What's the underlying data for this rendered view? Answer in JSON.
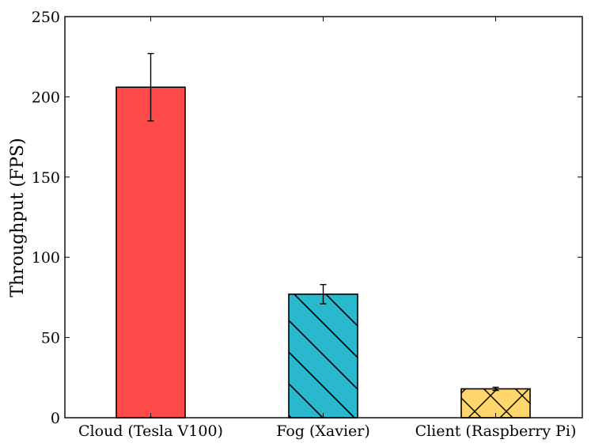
{
  "chart_data": {
    "type": "bar",
    "ylabel": "Throughput (FPS)",
    "xlabel": "",
    "title": "",
    "ylim": [
      0,
      250
    ],
    "yticks": [
      0,
      50,
      100,
      150,
      200,
      250
    ],
    "grid": false,
    "categories": [
      "Cloud (Tesla V100)",
      "Fog (Xavier)",
      "Client (Raspberry Pi)"
    ],
    "values": [
      206,
      77,
      18
    ],
    "errors": [
      21,
      6,
      1
    ],
    "colors": [
      "#ff4a4a",
      "#2ab8cc",
      "#ffd66b"
    ],
    "hatches": [
      "none",
      "backslash",
      "cross"
    ]
  }
}
